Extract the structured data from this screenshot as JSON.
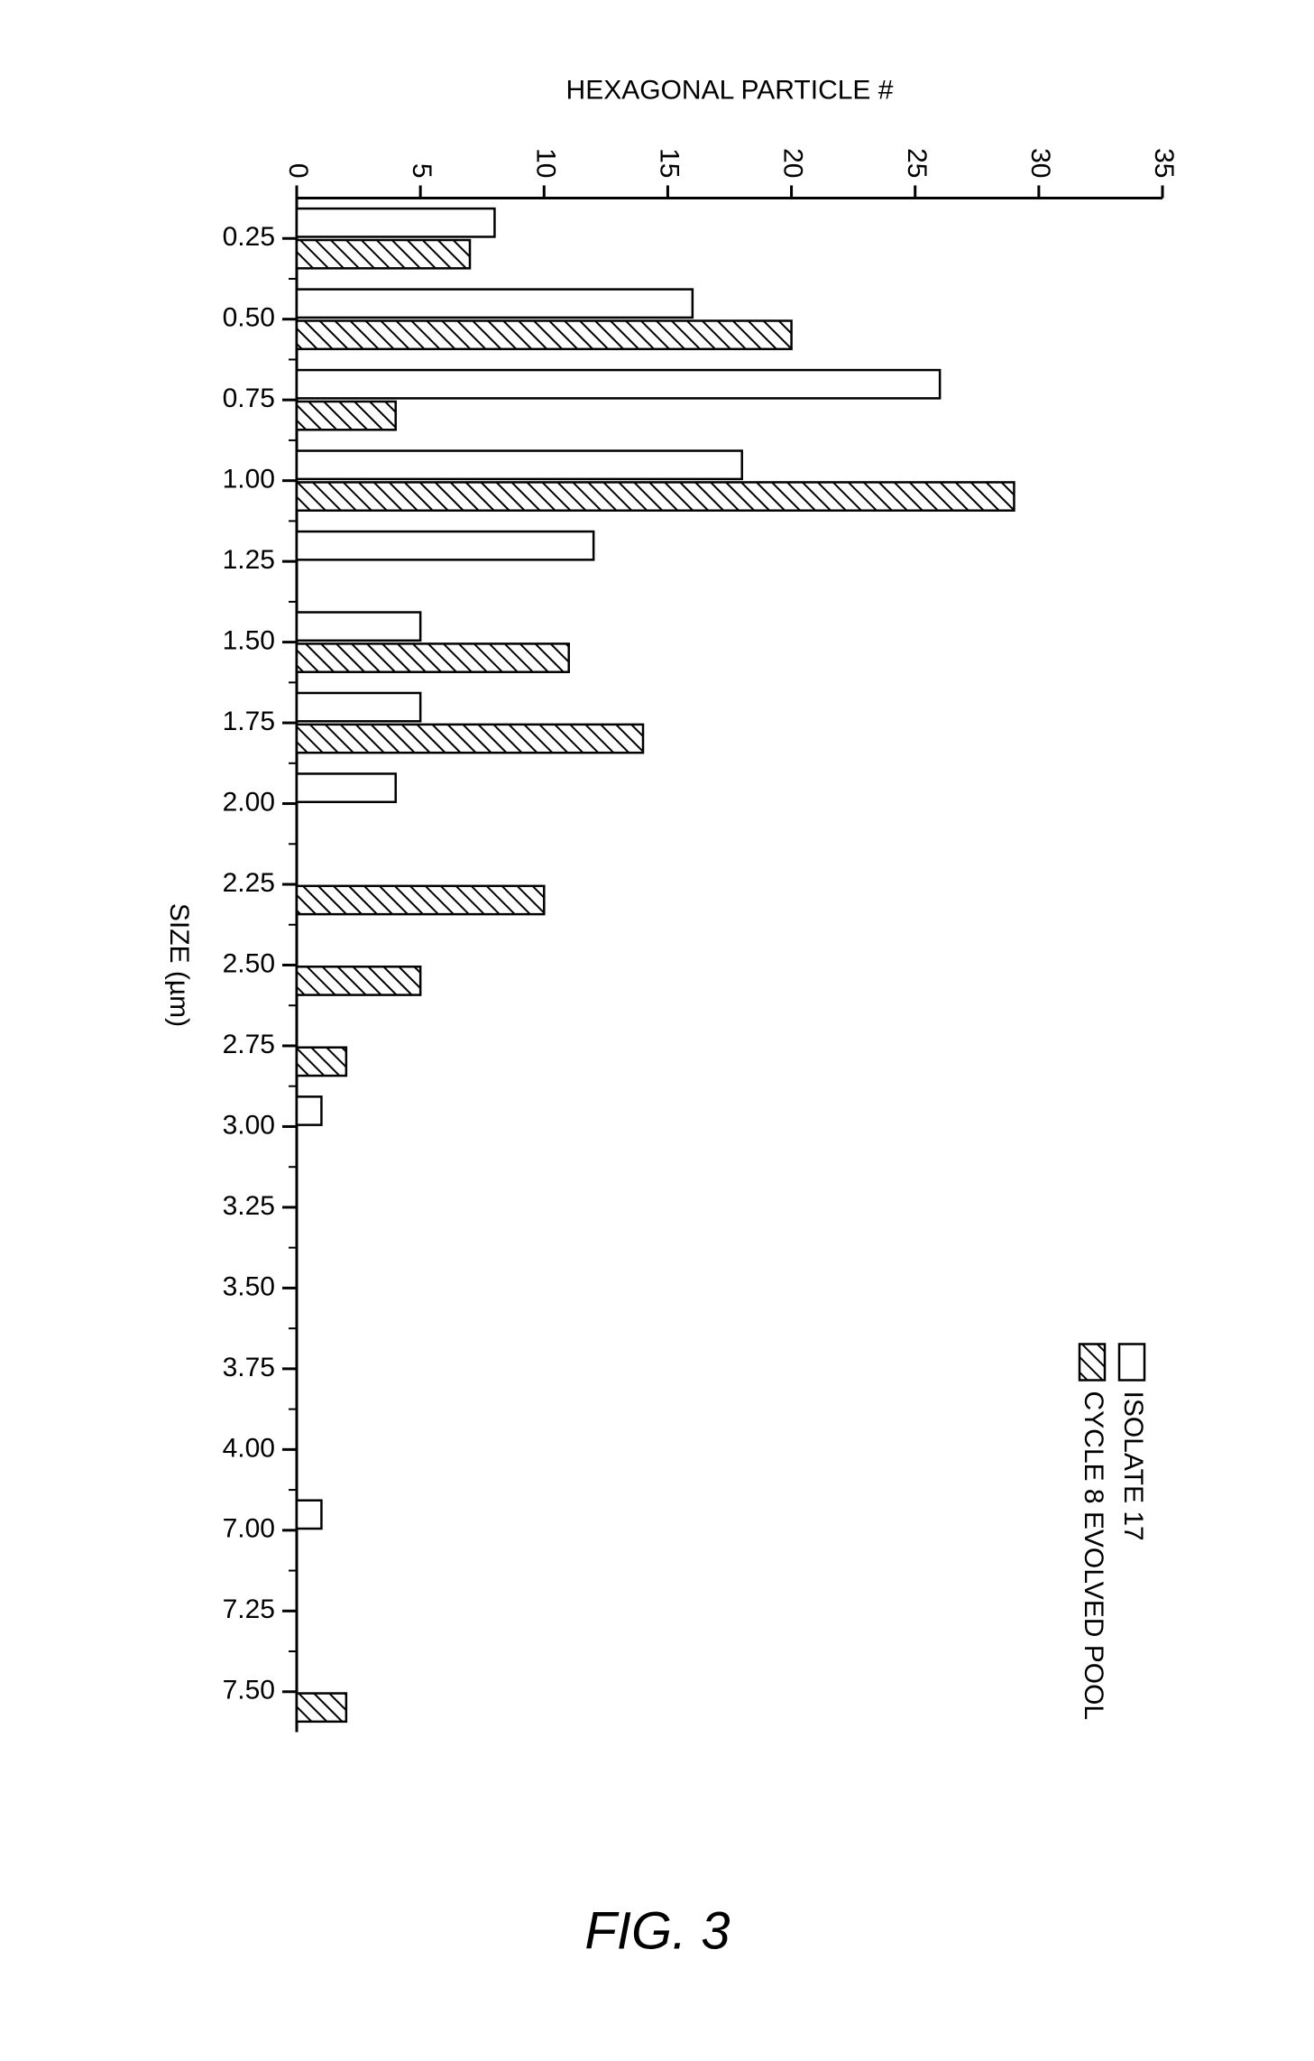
{
  "chart": {
    "type": "bar",
    "orientation": "rotated-90",
    "xlabel": "SIZE (µm)",
    "ylabel": "HEXAGONAL PARTICLE #",
    "label_fontsize": 30,
    "tick_fontsize": 30,
    "figure_label": "FIG. 3",
    "figure_label_fontsize": 58,
    "figure_label_style": "italic",
    "ylim": [
      0,
      35
    ],
    "ytick_step": 5,
    "categories": [
      "0.25",
      "0.50",
      "0.75",
      "1.00",
      "1.25",
      "1.50",
      "1.75",
      "2.00",
      "2.25",
      "2.50",
      "2.75",
      "3.00",
      "3.25",
      "3.50",
      "3.75",
      "4.00",
      "7.00",
      "7.25",
      "7.50"
    ],
    "series": [
      {
        "name": "ISOLATE 17",
        "fill": "none",
        "stroke": "#000000",
        "values": [
          8,
          16,
          26,
          18,
          12,
          5,
          5,
          4,
          0,
          0,
          0,
          1,
          0,
          0,
          0,
          0,
          1,
          0,
          0
        ]
      },
      {
        "name": "CYCLE 8 EVOLVED POOL",
        "fill": "hatch",
        "stroke": "#000000",
        "values": [
          7,
          20,
          4,
          29,
          0,
          11,
          14,
          0,
          10,
          5,
          2,
          0,
          0,
          0,
          0,
          0,
          0,
          0,
          2
        ]
      }
    ],
    "legend": {
      "position": "top-right",
      "fontsize": 30
    },
    "colors": {
      "background": "#ffffff",
      "axis": "#000000",
      "text": "#000000"
    },
    "axis_stroke_width": 3,
    "bar_stroke_width": 2.5,
    "bar_width": 0.35,
    "bar_gap": 0.04
  }
}
